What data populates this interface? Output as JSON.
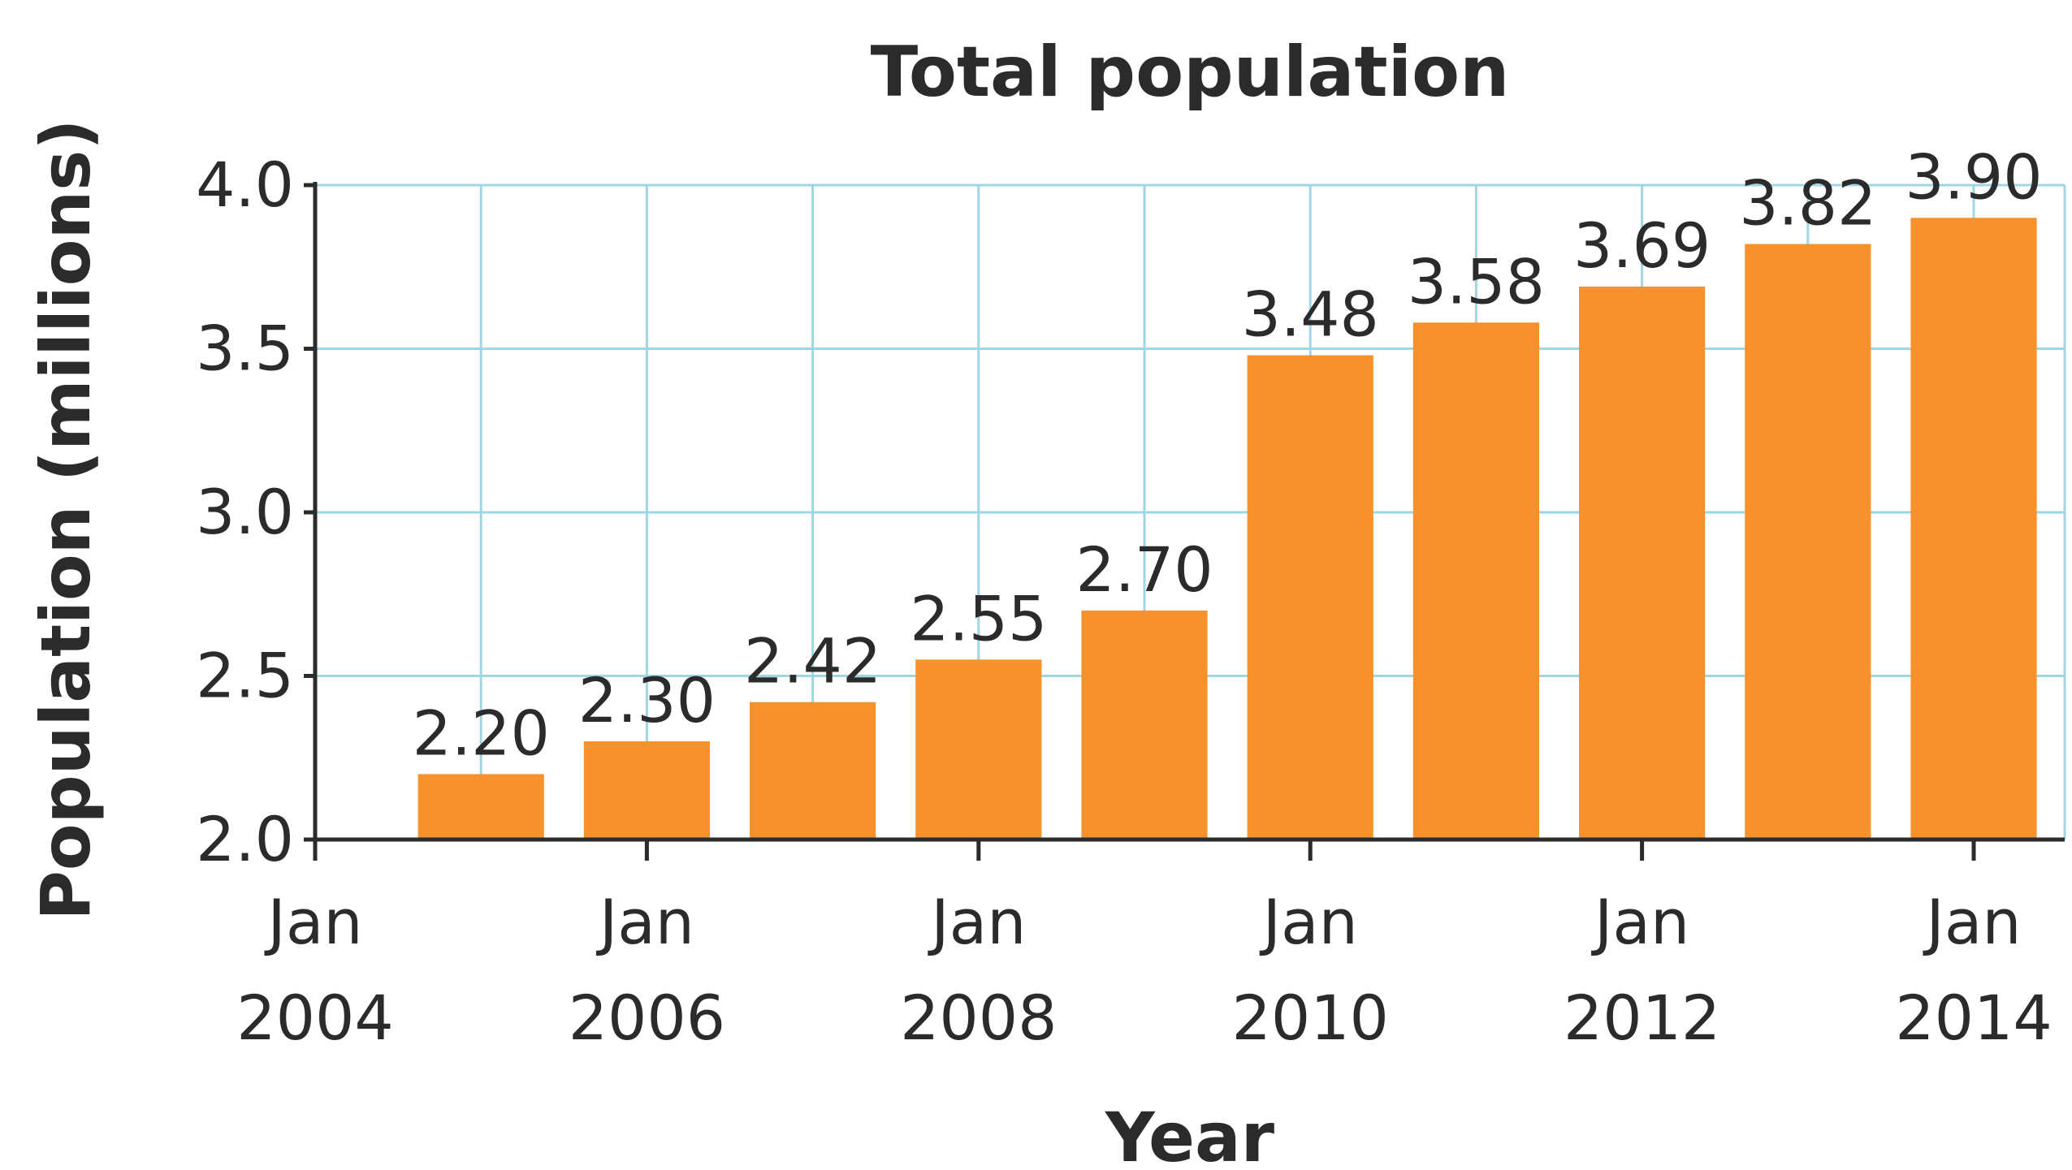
{
  "chart_data": {
    "type": "bar",
    "title": "Total population",
    "xlabel": "Year",
    "ylabel": "Population (millions)",
    "ylim": [
      2.0,
      4.0
    ],
    "yticks": [
      "2.0",
      "2.5",
      "3.0",
      "3.5",
      "4.0"
    ],
    "xticks": [
      {
        "line1": "Jan",
        "line2": "2004"
      },
      {
        "line1": "Jan",
        "line2": "2006"
      },
      {
        "line1": "Jan",
        "line2": "2008"
      },
      {
        "line1": "Jan",
        "line2": "2010"
      },
      {
        "line1": "Jan",
        "line2": "2012"
      },
      {
        "line1": "Jan",
        "line2": "2014"
      }
    ],
    "bar_color": "#f7912b",
    "grid": true,
    "bars": [
      {
        "value": 2.2,
        "label": "2.20"
      },
      {
        "value": 2.3,
        "label": "2.30"
      },
      {
        "value": 2.42,
        "label": "2.42"
      },
      {
        "value": 2.55,
        "label": "2.55"
      },
      {
        "value": 2.7,
        "label": "2.70"
      },
      {
        "value": 3.48,
        "label": "3.48"
      },
      {
        "value": 3.58,
        "label": "3.58"
      },
      {
        "value": 3.69,
        "label": "3.69"
      },
      {
        "value": 3.82,
        "label": "3.82"
      },
      {
        "value": 3.9,
        "label": "3.90"
      }
    ]
  }
}
